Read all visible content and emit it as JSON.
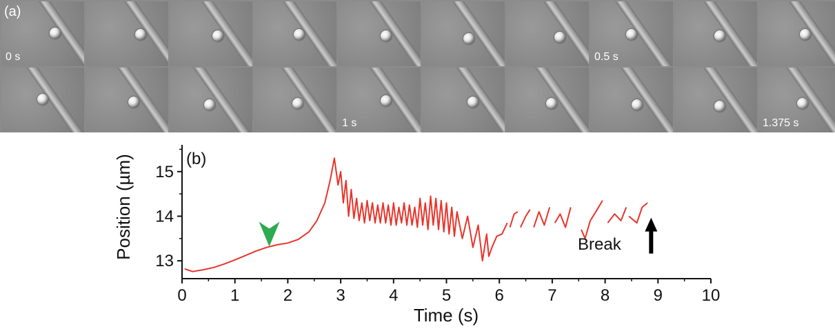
{
  "panel_a": {
    "label": "(a)",
    "frames": [
      {
        "time": "0 s"
      },
      {
        "time": ""
      },
      {
        "time": ""
      },
      {
        "time": ""
      },
      {
        "time": ""
      },
      {
        "time": ""
      },
      {
        "time": ""
      },
      {
        "time": "0.5 s"
      },
      {
        "time": ""
      },
      {
        "time": ""
      },
      {
        "time": ""
      },
      {
        "time": ""
      },
      {
        "time": ""
      },
      {
        "time": ""
      },
      {
        "time": "1 s"
      },
      {
        "time": ""
      },
      {
        "time": ""
      },
      {
        "time": ""
      },
      {
        "time": ""
      },
      {
        "time": "1.375 s"
      }
    ]
  },
  "panel_b": {
    "label": "(b)",
    "annotation": "Break"
  },
  "chart_data": {
    "type": "line",
    "title": "",
    "xlabel": "Time (s)",
    "ylabel": "Position (µm)",
    "xlim": [
      0,
      10
    ],
    "ylim": [
      12.6,
      15.6
    ],
    "xticks": [
      "0",
      "1",
      "2",
      "3",
      "4",
      "5",
      "6",
      "7",
      "8",
      "9",
      "10"
    ],
    "yticks": [
      "13",
      "14",
      "15"
    ],
    "grid": false,
    "series_color": "#e8342a",
    "series": [
      {
        "segments": [
          [
            [
              0.05,
              12.82
            ],
            [
              0.2,
              12.76
            ],
            [
              0.4,
              12.8
            ],
            [
              0.6,
              12.85
            ],
            [
              0.8,
              12.93
            ],
            [
              1.0,
              13.02
            ],
            [
              1.2,
              13.12
            ],
            [
              1.4,
              13.22
            ],
            [
              1.6,
              13.3
            ],
            [
              1.8,
              13.36
            ],
            [
              2.0,
              13.4
            ],
            [
              2.2,
              13.48
            ],
            [
              2.4,
              13.65
            ],
            [
              2.55,
              13.9
            ],
            [
              2.7,
              14.3
            ],
            [
              2.8,
              14.8
            ],
            [
              2.88,
              15.3
            ],
            [
              2.95,
              14.7
            ],
            [
              3.0,
              15.0
            ],
            [
              3.05,
              14.3
            ],
            [
              3.1,
              14.8
            ],
            [
              3.15,
              14.0
            ],
            [
              3.2,
              14.6
            ],
            [
              3.25,
              13.95
            ],
            [
              3.3,
              14.4
            ],
            [
              3.35,
              13.9
            ],
            [
              3.4,
              14.3
            ],
            [
              3.45,
              13.85
            ],
            [
              3.5,
              14.35
            ],
            [
              3.55,
              13.9
            ],
            [
              3.6,
              14.3
            ],
            [
              3.65,
              13.85
            ],
            [
              3.7,
              14.25
            ],
            [
              3.75,
              13.85
            ],
            [
              3.8,
              14.3
            ],
            [
              3.85,
              13.85
            ],
            [
              3.9,
              14.25
            ],
            [
              3.95,
              13.8
            ],
            [
              4.0,
              14.3
            ],
            [
              4.05,
              13.8
            ],
            [
              4.1,
              14.2
            ],
            [
              4.15,
              13.85
            ],
            [
              4.2,
              14.3
            ],
            [
              4.25,
              13.8
            ],
            [
              4.3,
              14.25
            ],
            [
              4.35,
              13.8
            ],
            [
              4.4,
              14.2
            ],
            [
              4.45,
              13.75
            ],
            [
              4.5,
              14.4
            ],
            [
              4.55,
              13.8
            ],
            [
              4.6,
              14.3
            ],
            [
              4.65,
              13.7
            ],
            [
              4.7,
              14.45
            ],
            [
              4.75,
              13.8
            ],
            [
              4.8,
              14.4
            ],
            [
              4.85,
              13.7
            ],
            [
              4.9,
              14.35
            ],
            [
              4.95,
              13.65
            ],
            [
              5.0,
              14.3
            ],
            [
              5.05,
              13.6
            ],
            [
              5.1,
              14.2
            ],
            [
              5.15,
              13.55
            ],
            [
              5.2,
              14.1
            ],
            [
              5.3,
              13.5
            ],
            [
              5.4,
              14.0
            ],
            [
              5.5,
              13.3
            ],
            [
              5.6,
              13.8
            ],
            [
              5.68,
              13.0
            ],
            [
              5.76,
              13.6
            ],
            [
              5.8,
              13.1
            ],
            [
              5.86,
              13.3
            ],
            [
              5.95,
              13.55
            ],
            [
              6.05,
              13.6
            ],
            [
              6.15,
              13.85
            ]
          ],
          [
            [
              6.2,
              13.75
            ],
            [
              6.28,
              14.05
            ],
            [
              6.35,
              14.1
            ]
          ],
          [
            [
              6.4,
              13.75
            ],
            [
              6.5,
              14.0
            ],
            [
              6.58,
              14.15
            ]
          ],
          [
            [
              6.65,
              13.75
            ],
            [
              6.75,
              14.1
            ],
            [
              6.85,
              13.8
            ],
            [
              6.95,
              14.2
            ]
          ],
          [
            [
              7.05,
              13.85
            ],
            [
              7.15,
              14.05
            ],
            [
              7.25,
              13.75
            ],
            [
              7.35,
              14.2
            ]
          ],
          [
            [
              7.55,
              13.7
            ],
            [
              7.62,
              13.5
            ],
            [
              7.72,
              13.9
            ],
            [
              7.85,
              14.15
            ],
            [
              7.95,
              14.35
            ]
          ],
          [
            [
              8.05,
              13.85
            ],
            [
              8.18,
              14.05
            ],
            [
              8.3,
              13.9
            ],
            [
              8.4,
              14.2
            ]
          ],
          [
            [
              8.45,
              14.0
            ],
            [
              8.6,
              13.85
            ],
            [
              8.7,
              14.2
            ],
            [
              8.8,
              14.3
            ]
          ]
        ]
      }
    ],
    "marker": {
      "label": "green-arrowhead",
      "x": 1.65,
      "y": 13.32,
      "color": "#2eaa52"
    },
    "break_arrow": {
      "x": 8.87,
      "y": 13.75,
      "color": "#000000"
    }
  }
}
